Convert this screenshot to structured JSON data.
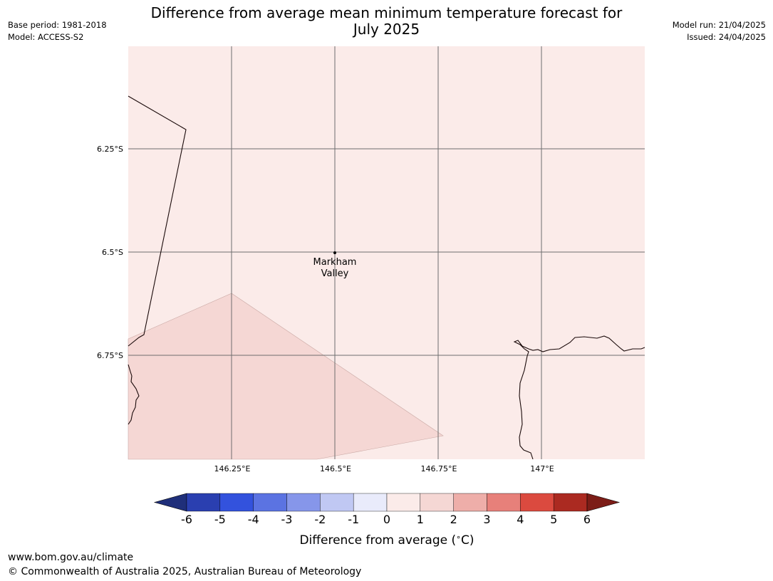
{
  "title_line1": "Difference from average mean minimum temperature forecast for",
  "title_line2": "July 2025",
  "base_period": "Base period: 1981-2018",
  "model": "Model: ACCESS-S2",
  "model_run": "Model run: 21/04/2025",
  "issued": "Issued: 24/04/2025",
  "lat_ticks": [
    "6.25°S",
    "6.5°S",
    "6.75°S"
  ],
  "lon_ticks": [
    "146.25°E",
    "146.5°E",
    "146.75°E",
    "147°E"
  ],
  "place": {
    "line1": "Markham",
    "line2": "Valley"
  },
  "colorbar": {
    "ticks": [
      "-6",
      "-5",
      "-4",
      "-3",
      "-2",
      "-1",
      "0",
      "1",
      "2",
      "3",
      "4",
      "5",
      "6"
    ],
    "colors": [
      "#1f2f7a",
      "#2a3fb0",
      "#3352dd",
      "#5b73e2",
      "#8696ea",
      "#c0c8f3",
      "#e9ebfb",
      "#fbebe9",
      "#f5d7d4",
      "#eeaea9",
      "#e7807a",
      "#db4a3f",
      "#ab2a21",
      "#7c1d17"
    ],
    "label": "Difference from average ($^\\circ$C)"
  },
  "regions": {
    "base_color": "#fbebe9",
    "warm_color": "#f5d7d4"
  },
  "footer_url": "www.bom.gov.au/climate",
  "footer_copyright": "© Commonwealth of Australia 2025, Australian Bureau of Meteorology"
}
